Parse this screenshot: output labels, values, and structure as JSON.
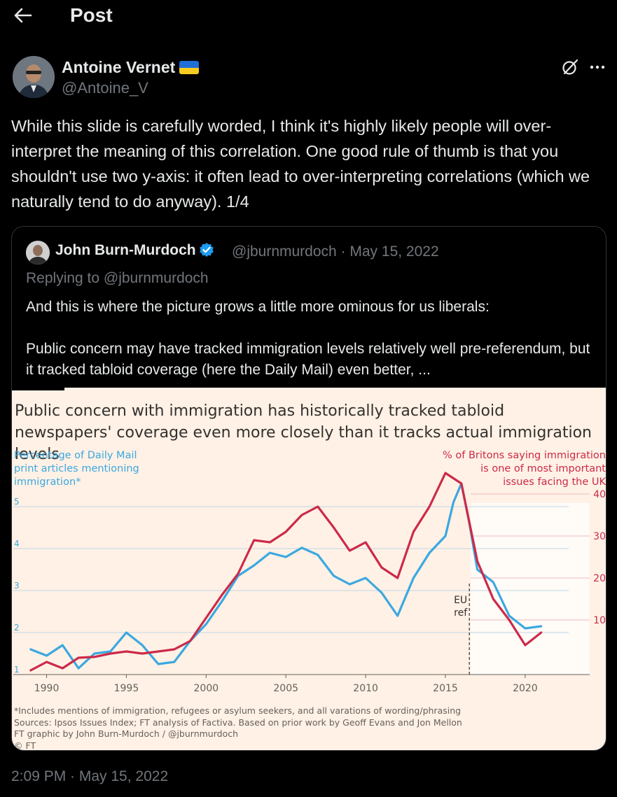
{
  "header": {
    "title": "Post"
  },
  "tweet": {
    "author_name": "Antoine Vernet",
    "author_handle": "@Antoine_V",
    "text": "While this slide is carefully worded, I think it's highly likely people will over-interpret the meaning of this correlation. One good rule of thumb is that you shouldn't use two y-axis: it often lead to over-interpreting correlations (which we naturally tend to do anyway). 1/4",
    "timestamp": "2:09 PM · May 15, 2022"
  },
  "quote": {
    "author_name": "John Burn-Murdoch",
    "meta": "@jburnmurdoch · May 15, 2022",
    "replying_to": "Replying to @jburnmurdoch",
    "paragraph1": "And this is where the picture grows a little more ominous for us liberals:",
    "paragraph2": "Public concern may have tracked immigration levels relatively well pre-referendum, but it tracked tabloid coverage (here the Daily Mail) even better, ..."
  },
  "colors": {
    "blue_series": "#3ba8e0",
    "red_series": "#cc2a49",
    "chart_bg": "#fff1e5",
    "accent_blue": "#1d9bf0"
  },
  "chart_data": {
    "type": "line",
    "title": "Public concern with immigration has historically tracked tabloid newspapers' coverage even more closely than it tracks actual immigration levels",
    "left_axis_label": [
      "Percentage of Daily Mail",
      "print articles mentioning",
      "immigration*"
    ],
    "right_axis_label": [
      "% of Britons saying immigration",
      "is one of most important",
      "issues facing the UK"
    ],
    "x_ticks": [
      1990,
      1995,
      2000,
      2005,
      2010,
      2015,
      2020
    ],
    "x_range": [
      1988,
      2024
    ],
    "left_ticks": [
      1,
      2,
      3,
      4,
      5
    ],
    "left_range": [
      1,
      6
    ],
    "right_ticks": [
      10,
      20,
      30,
      40
    ],
    "right_range": [
      -3,
      47
    ],
    "annotation": {
      "x": 2016.5,
      "text": [
        "EU",
        "ref"
      ]
    },
    "series": [
      {
        "name": "Percentage of Daily Mail print articles mentioning immigration*",
        "axis": "left",
        "color": "#3ba8e0",
        "x": [
          1989,
          1990,
          1991,
          1992,
          1993,
          1994,
          1995,
          1996,
          1997,
          1998,
          1999,
          2000,
          2001,
          2002,
          2003,
          2004,
          2005,
          2006,
          2007,
          2008,
          2009,
          2010,
          2011,
          2012,
          2013,
          2014,
          2015,
          2015.5,
          2016,
          2016.5,
          2017,
          2018,
          2019,
          2020,
          2021
        ],
        "y": [
          1.6,
          1.45,
          1.7,
          1.15,
          1.5,
          1.55,
          2.0,
          1.7,
          1.25,
          1.3,
          1.8,
          2.2,
          2.75,
          3.35,
          3.6,
          3.9,
          3.8,
          4.02,
          3.85,
          3.35,
          3.15,
          3.3,
          2.95,
          2.4,
          3.3,
          3.9,
          4.3,
          5.1,
          5.55,
          4.6,
          3.5,
          3.2,
          2.4,
          2.1,
          2.15
        ]
      },
      {
        "name": "% of Britons saying immigration is one of most important issues facing the UK",
        "axis": "right",
        "color": "#cc2a49",
        "x": [
          1989,
          1990,
          1991,
          1992,
          1993,
          1994,
          1995,
          1996,
          1997,
          1998,
          1999,
          2000,
          2001,
          2002,
          2003,
          2004,
          2005,
          2006,
          2007,
          2008,
          2009,
          2010,
          2011,
          2012,
          2013,
          2014,
          2015,
          2016,
          2017,
          2018,
          2019,
          2020,
          2021
        ],
        "y": [
          -2,
          0,
          -1.5,
          1,
          1.2,
          2,
          2.5,
          2,
          2.5,
          3,
          5,
          10.5,
          16,
          21,
          29,
          28.5,
          31,
          35,
          37,
          32,
          26.5,
          28.5,
          22.5,
          20,
          31,
          37,
          45,
          42.5,
          24,
          15,
          10,
          4,
          7
        ]
      }
    ],
    "footnotes": [
      "*Includes mentions of immigration, refugees or asylum seekers, and all varations of wording/phrasing",
      "Sources: Ipsos Issues Index; FT analysis of Factiva. Based on prior work by Geoff Evans and Jon Mellon",
      "FT graphic by John Burn-Murdoch / @jburnmurdoch",
      "© FT"
    ]
  }
}
